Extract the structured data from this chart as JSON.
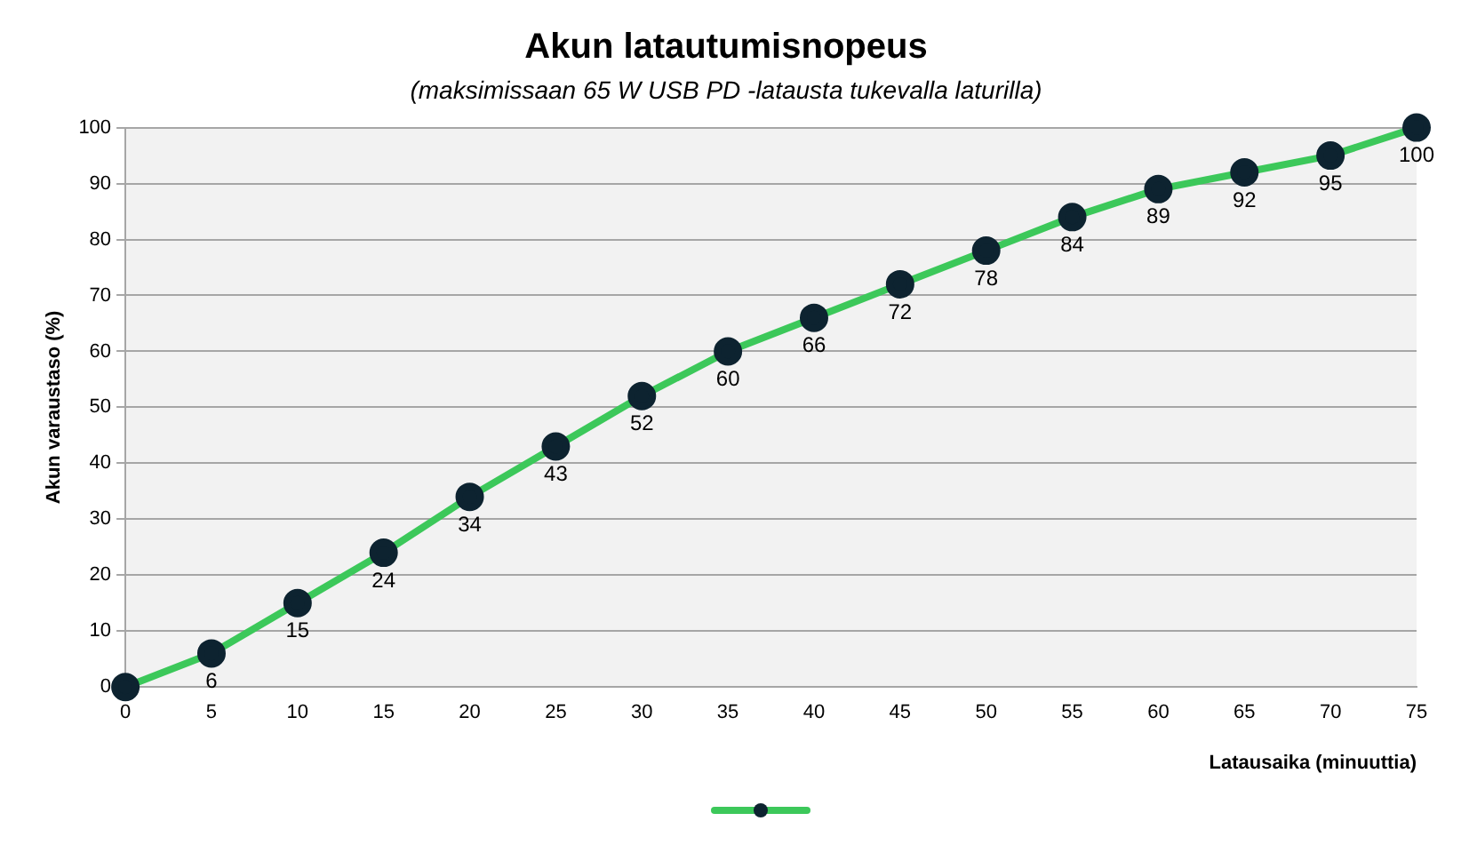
{
  "chart_data": {
    "type": "line",
    "title": "Akun latautumisnopeus",
    "subtitle": "(maksimissaan 65 W USB PD -latausta tukevalla laturilla)",
    "xlabel": "Latausaika (minuuttia)",
    "ylabel": "Akun varaustaso (%)",
    "x": [
      0,
      5,
      10,
      15,
      20,
      25,
      30,
      35,
      40,
      45,
      50,
      55,
      60,
      65,
      70,
      75
    ],
    "series": [
      {
        "color": "#3cc85a",
        "values": [
          0,
          6,
          15,
          24,
          34,
          43,
          52,
          60,
          66,
          72,
          78,
          84,
          89,
          92,
          95,
          100
        ],
        "value_labels": [
          null,
          "6",
          "15",
          "24",
          "34",
          "43",
          "52",
          "60",
          "66",
          "72",
          "78",
          "84",
          "89",
          "92",
          "95",
          "100"
        ]
      }
    ],
    "xlim": [
      0,
      75
    ],
    "xticks": [
      0,
      5,
      10,
      15,
      20,
      25,
      30,
      35,
      40,
      45,
      50,
      55,
      60,
      65,
      70,
      75
    ],
    "ylim": [
      0,
      100
    ],
    "yticks": [
      0,
      10,
      20,
      30,
      40,
      50,
      60,
      70,
      80,
      90,
      100
    ],
    "grid": "y",
    "marker": "circle",
    "line_style": "solid"
  }
}
